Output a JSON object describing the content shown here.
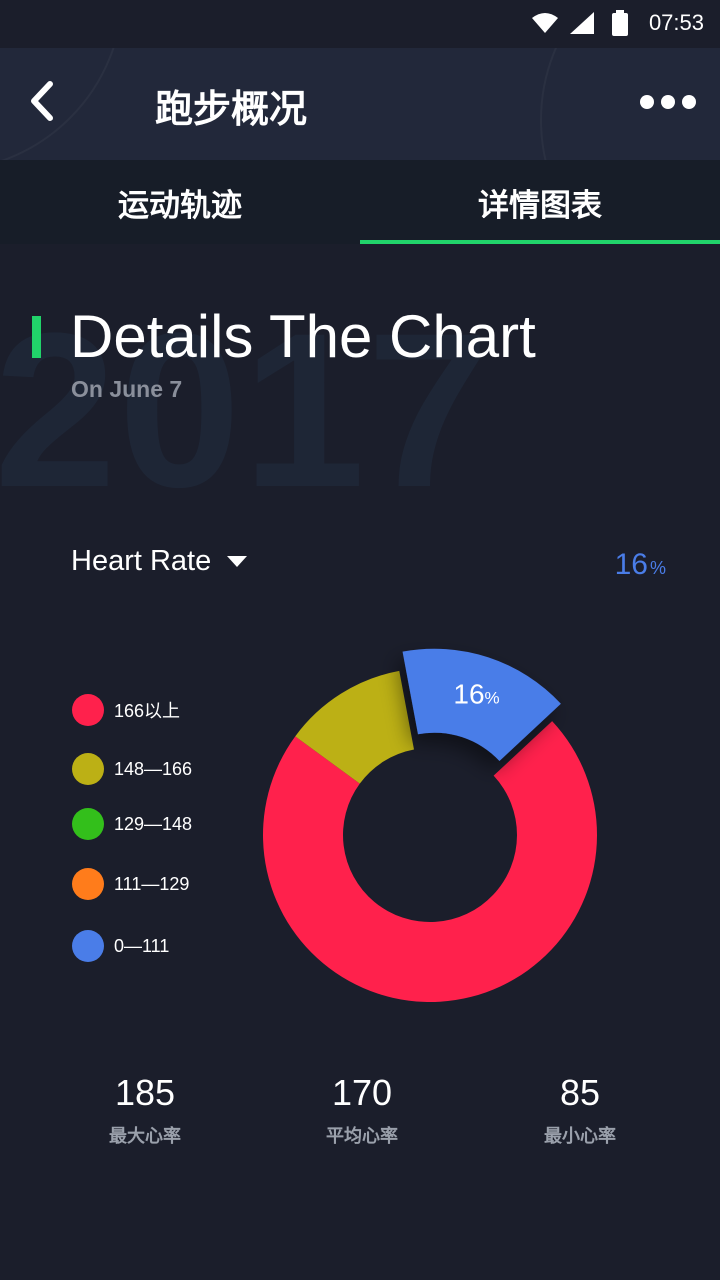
{
  "status_bar": {
    "time": "07:53"
  },
  "header": {
    "title": "跑步概况"
  },
  "tabs": [
    {
      "label": "运动轨迹",
      "active": false
    },
    {
      "label": "详情图表",
      "active": true
    }
  ],
  "section": {
    "background_year": "2017",
    "title": "Details The Chart",
    "subtitle": "On June 7"
  },
  "metric": {
    "label": "Heart Rate",
    "highlight_value": "16",
    "highlight_unit": "%"
  },
  "legend": [
    {
      "label": "166以上",
      "color": "#ff214c"
    },
    {
      "label": "148—166",
      "color": "#bcb015"
    },
    {
      "label": "129—148",
      "color": "#33bf1b"
    },
    {
      "label": "111—129",
      "color": "#ff7c1b"
    },
    {
      "label": "0—111",
      "color": "#4a7de8"
    }
  ],
  "chart_data": {
    "type": "pie",
    "variant": "donut",
    "categories": [
      "166以上",
      "148—166",
      "129—148",
      "111—129",
      "0—111"
    ],
    "values": [
      72,
      12,
      0,
      0,
      16
    ],
    "colors": [
      "#ff214c",
      "#bcb015",
      "#33bf1b",
      "#ff7c1b",
      "#4a7de8"
    ],
    "highlighted": "0—111",
    "highlight_label": "16",
    "highlight_unit": "%"
  },
  "stats": [
    {
      "value": "185",
      "label": "最大心率"
    },
    {
      "value": "170",
      "label": "平均心率"
    },
    {
      "value": "85",
      "label": "最小心率"
    }
  ]
}
